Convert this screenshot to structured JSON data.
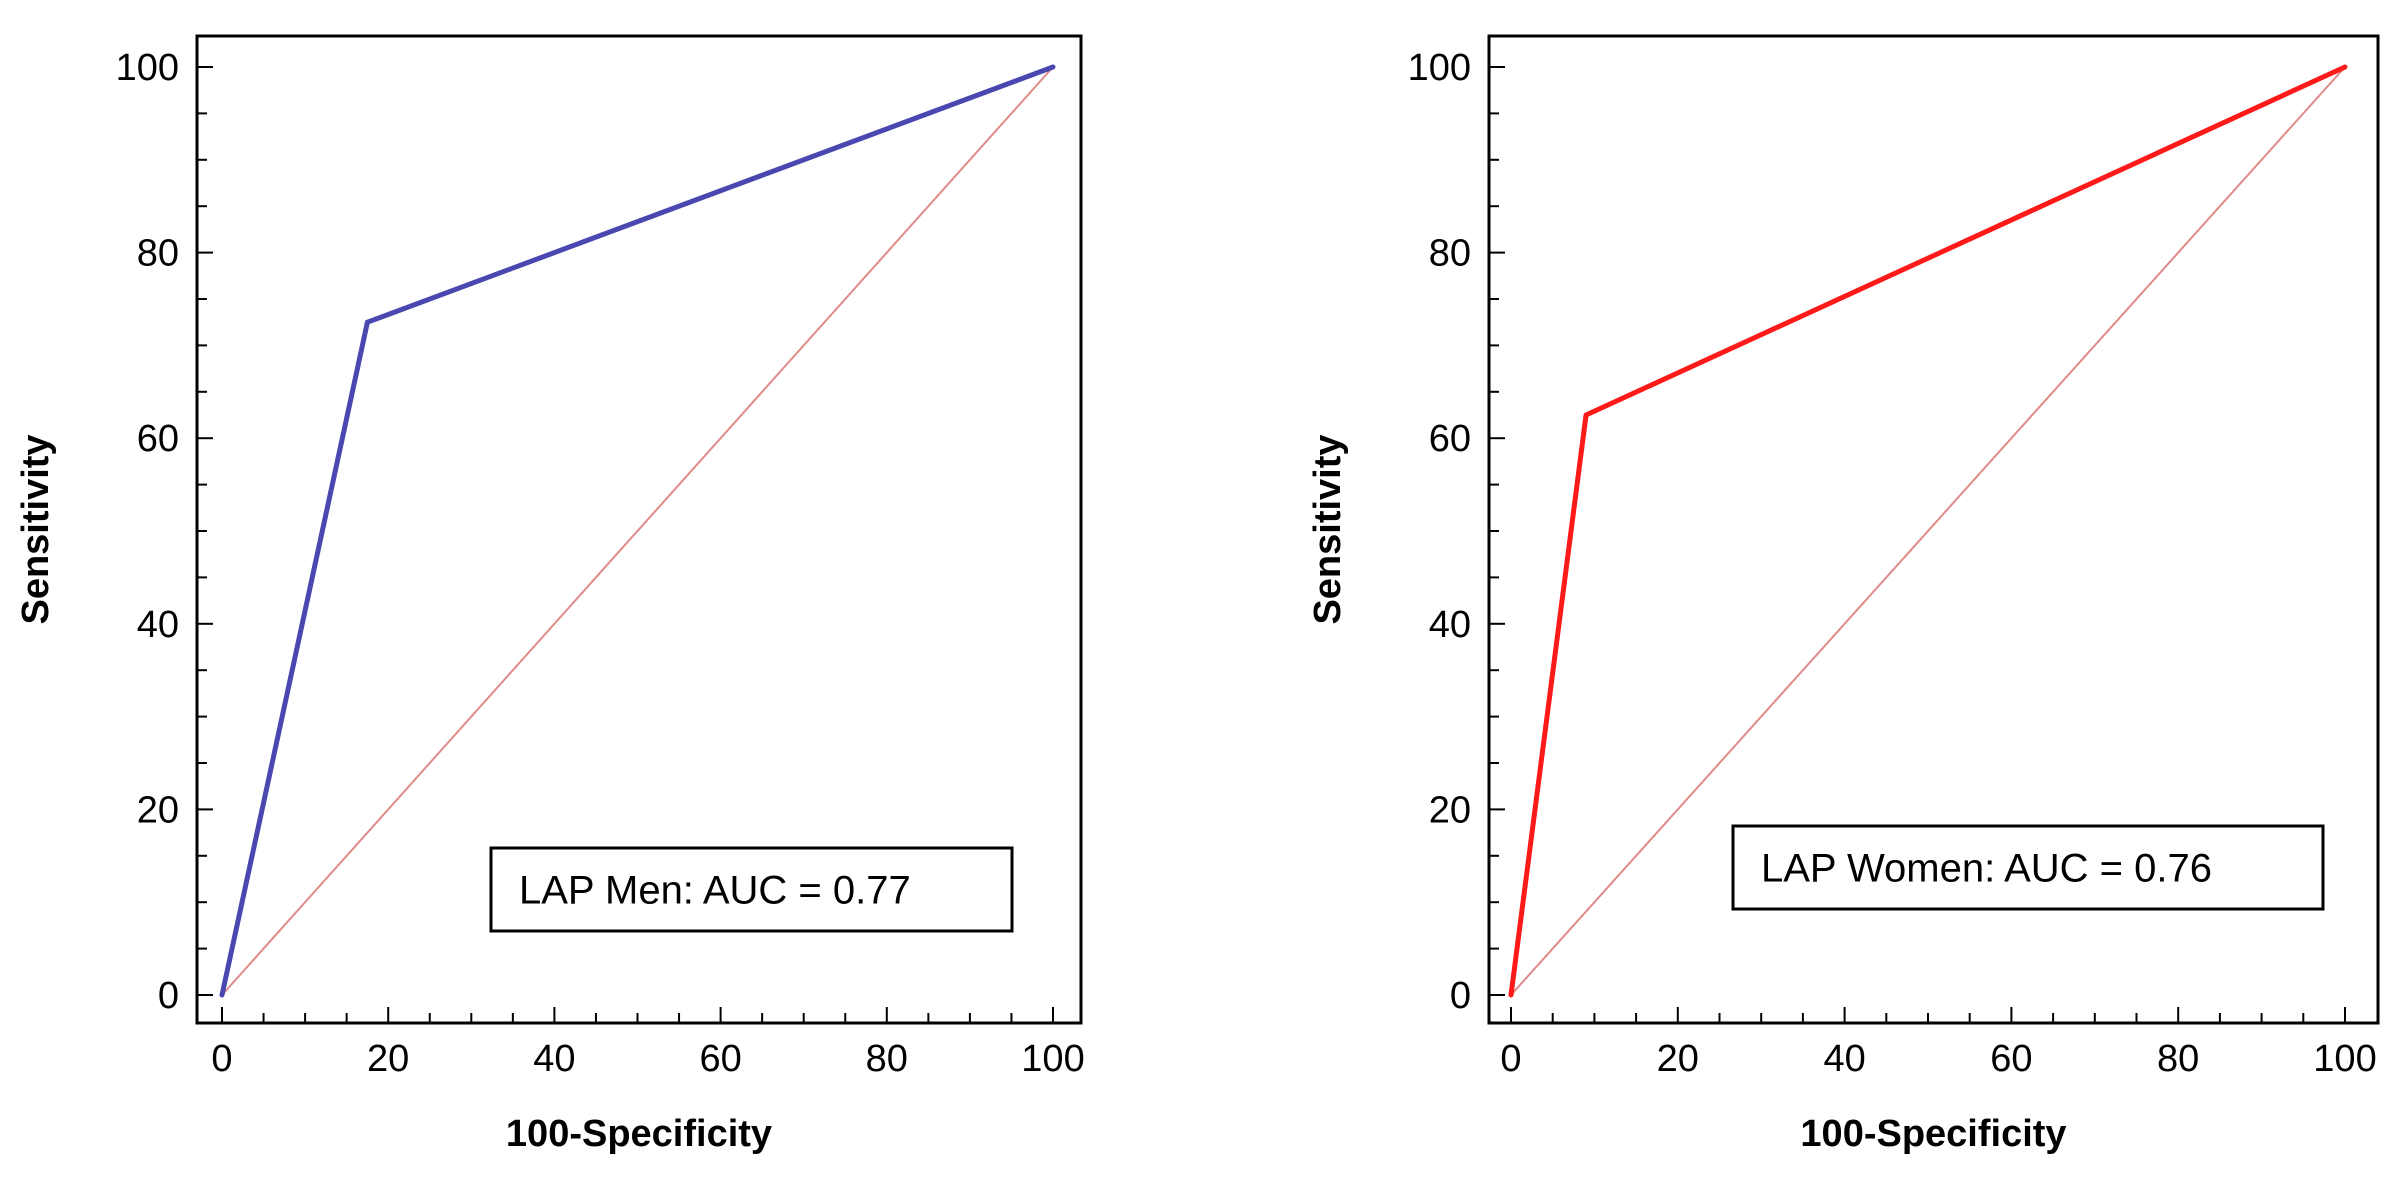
{
  "chart_data": [
    {
      "type": "line",
      "xlabel": "100-Specificity",
      "ylabel": "Sensitivity",
      "xlim": [
        0,
        100
      ],
      "ylim": [
        0,
        100
      ],
      "xticks": [
        0,
        20,
        40,
        60,
        80,
        100
      ],
      "yticks": [
        0,
        20,
        40,
        60,
        80,
        100
      ],
      "grid": false,
      "series": [
        {
          "name": "LAP Men",
          "x": [
            0,
            17.5,
            100
          ],
          "y": [
            0,
            72.5,
            100
          ],
          "color": "#4848b0"
        },
        {
          "name": "Reference",
          "x": [
            0,
            100
          ],
          "y": [
            0,
            100
          ],
          "color": "#e08a8a"
        }
      ],
      "legend": {
        "text": "LAP Men: AUC = 0.77",
        "position": "bottom-right"
      }
    },
    {
      "type": "line",
      "xlabel": "100-Specificity",
      "ylabel": "Sensitivity",
      "xlim": [
        0,
        100
      ],
      "ylim": [
        0,
        100
      ],
      "xticks": [
        0,
        20,
        40,
        60,
        80,
        100
      ],
      "yticks": [
        0,
        20,
        40,
        60,
        80,
        100
      ],
      "grid": false,
      "series": [
        {
          "name": "LAP Women",
          "x": [
            0,
            9,
            100
          ],
          "y": [
            0,
            62.5,
            100
          ],
          "color": "#ff1a1a"
        },
        {
          "name": "Reference",
          "x": [
            0,
            100
          ],
          "y": [
            0,
            100
          ],
          "color": "#e08a8a"
        }
      ],
      "legend": {
        "text": "LAP Women: AUC = 0.76",
        "position": "bottom-right"
      }
    }
  ]
}
